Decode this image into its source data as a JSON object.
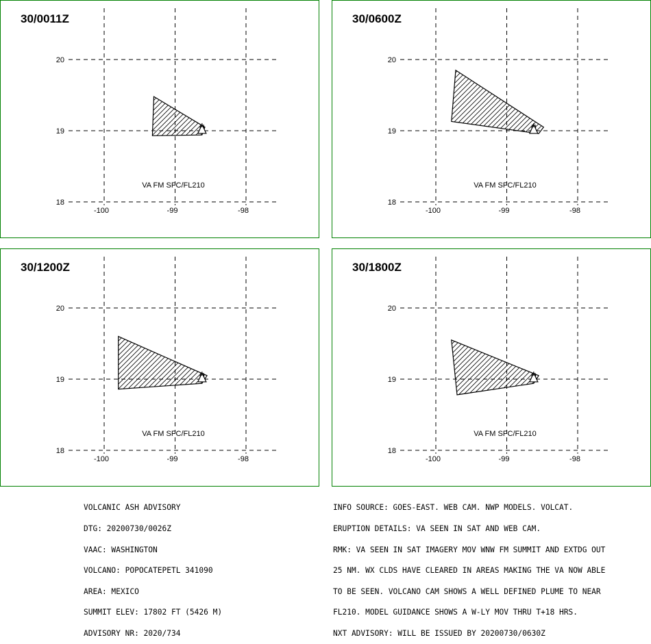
{
  "panels": [
    {
      "title": "30/0011Z",
      "label": "VA FM SFC/FL210",
      "polygon": [
        [
          -99.3,
          19.48
        ],
        [
          -98.58,
          19.05
        ],
        [
          -98.62,
          18.94
        ],
        [
          -99.32,
          18.93
        ]
      ]
    },
    {
      "title": "30/0600Z",
      "label": "VA FM SFC/FL210",
      "polygon": [
        [
          -99.72,
          19.85
        ],
        [
          -98.48,
          19.05
        ],
        [
          -98.55,
          18.96
        ],
        [
          -99.78,
          19.13
        ]
      ]
    },
    {
      "title": "30/1200Z",
      "label": "VA FM SFC/FL210",
      "polygon": [
        [
          -99.8,
          19.6
        ],
        [
          -98.55,
          19.05
        ],
        [
          -98.62,
          18.94
        ],
        [
          -99.8,
          18.86
        ]
      ]
    },
    {
      "title": "30/1800Z",
      "label": "VA FM SFC/FL210",
      "polygon": [
        [
          -99.78,
          19.55
        ],
        [
          -98.55,
          19.05
        ],
        [
          -98.62,
          18.94
        ],
        [
          -99.7,
          18.78
        ]
      ]
    }
  ],
  "axes": {
    "lat_ticks": [
      "20",
      "19",
      "18"
    ],
    "lon_ticks": [
      "-100",
      "-99",
      "-98"
    ],
    "lat_range": [
      18,
      20
    ],
    "lon_range": [
      -100,
      -98
    ],
    "grid": "dashed",
    "volcano_marker": [
      -98.62,
      19.02
    ]
  },
  "colors": {
    "frame": "#008000",
    "ink": "#000000",
    "background": "#ffffff"
  },
  "advisory_left": [
    "VOLCANIC ASH ADVISORY",
    "DTG: 20200730/0026Z",
    "VAAC: WASHINGTON",
    "VOLCANO: POPOCATEPETL 341090",
    "AREA: MEXICO",
    "SUMMIT ELEV: 17802 FT (5426 M)",
    "ADVISORY NR: 2020/734"
  ],
  "advisory_right": [
    "INFO SOURCE: GOES-EAST. WEB CAM. NWP MODELS. VOLCAT.",
    "ERUPTION DETAILS: VA SEEN IN SAT AND WEB CAM.",
    "RMK: VA SEEN IN SAT IMAGERY MOV WNW FM SUMMIT AND EXTDG OUT",
    "25 NM. WX CLDS HAVE CLEARED IN AREAS MAKING THE VA NOW ABLE",
    "TO BE SEEN. VOLCANO CAM SHOWS A WELL DEFINED PLUME TO NEAR",
    "FL210. MODEL GUIDANCE SHOWS A W-LY MOV THRU T+18 HRS.",
    "NXT ADVISORY: WILL BE ISSUED BY 20200730/0630Z"
  ]
}
